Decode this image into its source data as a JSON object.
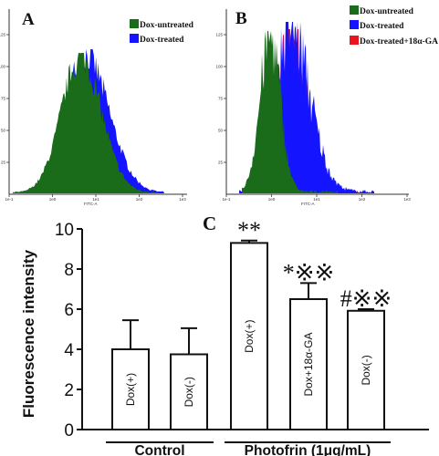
{
  "panels": {
    "A": {
      "letter": "A",
      "legend": [
        {
          "label": "Dox-untreated",
          "color": "#1a6b1a"
        },
        {
          "label": "Dox-treated",
          "color": "#1414ff"
        }
      ],
      "y_ticks": [
        "125",
        "100",
        "75",
        "50",
        "25"
      ],
      "x_ticks": [
        "1e-1",
        "1e0",
        "1e1",
        "1e2",
        "1e3"
      ],
      "xlabel": "FITC-A"
    },
    "B": {
      "letter": "B",
      "legend": [
        {
          "label": "Dox-untreated",
          "color": "#1a6b1a"
        },
        {
          "label": "Dox-treated",
          "color": "#1414ff"
        },
        {
          "label": "Dox-treated+18α-GA",
          "color": "#e8141e"
        }
      ],
      "y_ticks": [
        "125",
        "100",
        "75",
        "50",
        "25"
      ],
      "x_ticks": [
        "1e-1",
        "1e0",
        "1e1",
        "1e2",
        "1e3"
      ],
      "xlabel": "FITC-A"
    }
  },
  "chart_data": {
    "type": "bar",
    "panel_letter": "C",
    "ylabel": "Fluorescence intensity",
    "ylim": [
      0,
      10
    ],
    "y_ticks": [
      0,
      2,
      4,
      6,
      8,
      10
    ],
    "bars": [
      {
        "label": "Dox(+)",
        "value": 4.0,
        "error": 1.45,
        "annotation": ""
      },
      {
        "label": "Dox(-)",
        "value": 3.75,
        "error": 1.3,
        "annotation": ""
      },
      {
        "label": "Dox(+)",
        "value": 9.3,
        "error": 0.12,
        "annotation": "**"
      },
      {
        "label": "Dox+18α-GA",
        "value": 6.5,
        "error": 0.8,
        "annotation": "*※※"
      },
      {
        "label": "Dox(-)",
        "value": 5.92,
        "error": 0.08,
        "annotation": "#※※"
      }
    ],
    "groups": [
      {
        "label": "Control",
        "bars": [
          0,
          1
        ]
      },
      {
        "label": "Photofrin (1μg/mL)",
        "bars": [
          2,
          3,
          4
        ]
      }
    ]
  }
}
